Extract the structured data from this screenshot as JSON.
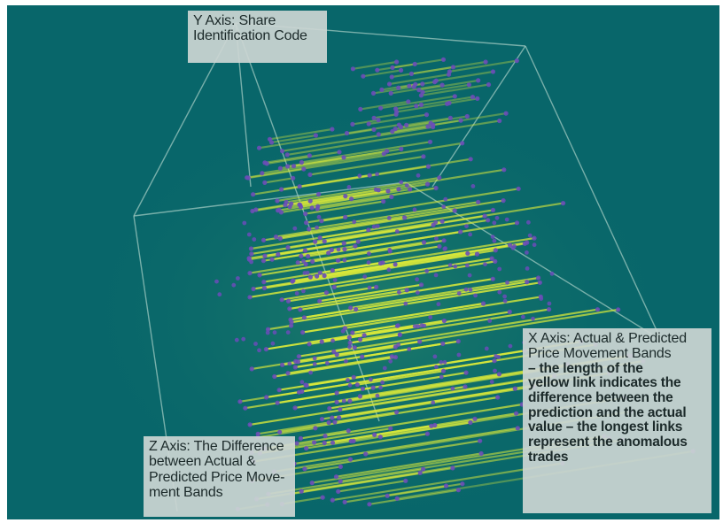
{
  "chart_data": {
    "type": "scatter",
    "dimensions": 3,
    "title": "",
    "background_color": "#08666a",
    "link_color": "#d8e83a",
    "point_color": "#6a4cb8",
    "frame_color": "#9ec8c0",
    "axes": {
      "y": {
        "label": "Y Axis: Share Identification Code"
      },
      "z": {
        "label": "Z Axis: The Difference between Actual & Predicted Price Movement Bands"
      },
      "x": {
        "label": "X Axis: Actual & Predicted Price Movement Bands",
        "description": "– the length of the yellow link indicates the difference between the prediction and the actual value – the longest links represent the anomalous trades"
      }
    }
  },
  "labels": {
    "y_line1": "Y Axis: Share",
    "y_line2": "Identification Code",
    "z_line1": "Z Axis: The Difference",
    "z_line2": "between Actual &",
    "z_line3": "Predicted Price Move-",
    "z_line4": "ment Bands",
    "x_line1": "X Axis: Actual & Predicted",
    "x_line2": "Price Movement Bands",
    "x_line3": "– the length of the",
    "x_line4": "yellow link indicates the",
    "x_line5": "difference between the",
    "x_line6": "prediction and the actual",
    "x_line7": "value – the longest links",
    "x_line8": "represent the anomalous",
    "x_line9": "trades"
  }
}
